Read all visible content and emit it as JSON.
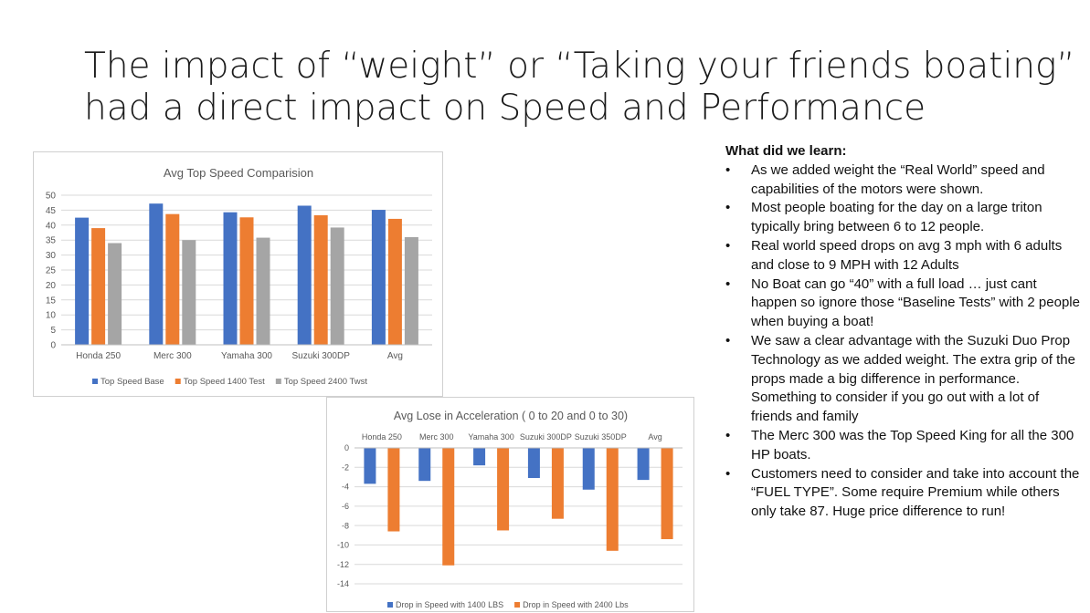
{
  "slide": {
    "title_line1": "The impact of “weight” or “Taking your friends boating”",
    "title_line2": "had a direct impact on Speed and Performance"
  },
  "notes": {
    "heading": "What did we learn:",
    "bullet_glyph": "•",
    "items": [
      "As we added weight the “Real World” speed and capabilities of the motors were shown.",
      "Most people boating for the day on a large triton typically bring between 6 to 12 people.",
      "Real world speed drops on avg 3 mph with 6 adults and close to 9 MPH with 12 Adults",
      "No Boat can go “40” with a full load … just cant happen so ignore those “Baseline Tests” with 2 people when buying a boat!",
      "We saw a clear advantage with the Suzuki Duo Prop Technology as we added weight. The extra grip of the props made a big difference in performance.  Something to consider if you go out with a lot of friends and family",
      "The Merc 300 was the Top Speed King for all the 300 HP boats.",
      "Customers need to consider and take into account the “FUEL TYPE”.  Some require Premium while others only take 87.  Huge price difference to run!"
    ]
  },
  "colors": {
    "blue": "#4472c4",
    "orange": "#ed7d31",
    "gray": "#a5a5a5",
    "grid": "#d9d9d9",
    "axis_text": "#595959"
  },
  "chart_data": [
    {
      "type": "bar",
      "title": "Avg Top Speed Comparision",
      "categories": [
        "Honda 250",
        "Merc 300",
        "Yamaha 300",
        "Suzuki 300DP",
        "Avg"
      ],
      "series": [
        {
          "name": "Top Speed Base",
          "values": [
            42.5,
            47.2,
            44.3,
            46.5,
            45.1
          ]
        },
        {
          "name": "Top Speed 1400 Test",
          "values": [
            39,
            43.7,
            42.6,
            43.3,
            42.1
          ]
        },
        {
          "name": "Top Speed 2400 Twst",
          "values": [
            34,
            35,
            35.8,
            39.2,
            36
          ]
        }
      ],
      "yticks": [
        "0",
        "5",
        "10",
        "15",
        "20",
        "25",
        "30",
        "35",
        "40",
        "45",
        "50"
      ],
      "ylim": [
        0,
        50
      ],
      "grid": true,
      "legend": "bottom"
    },
    {
      "type": "bar",
      "title": "Avg Lose in Acceleration  ( 0 to 20 and 0 to 30)",
      "categories": [
        "Honda 250",
        "Merc 300",
        "Yamaha 300",
        "Suzuki 300DP",
        "Suzuki 350DP",
        "Avg"
      ],
      "series": [
        {
          "name": "Drop in Speed with 1400 LBS",
          "values": [
            -3.7,
            -3.4,
            -1.8,
            -3.1,
            -4.3,
            -3.3
          ]
        },
        {
          "name": "Drop in Speed with 2400 Lbs",
          "values": [
            -8.6,
            -12.1,
            -8.5,
            -7.3,
            -10.6,
            -9.4
          ]
        }
      ],
      "yticks": [
        "0",
        "-2",
        "-4",
        "-6",
        "-8",
        "-10",
        "-12",
        "-14"
      ],
      "ylim": [
        -14,
        0
      ],
      "grid": true,
      "legend": "bottom"
    }
  ]
}
